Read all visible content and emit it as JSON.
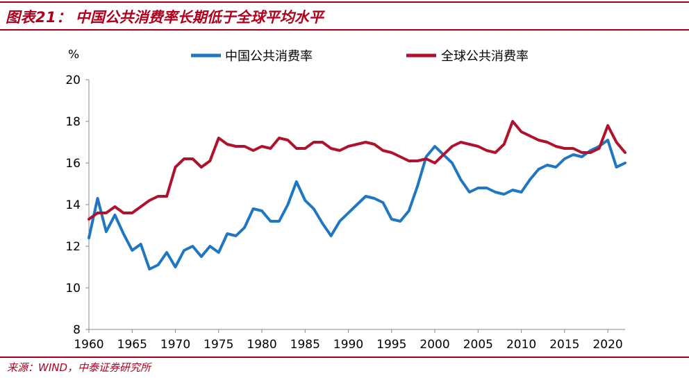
{
  "header": {
    "figure_label": "图表21：",
    "title": "中国公共消费率长期低于全球平均水平"
  },
  "footer": {
    "source": "来源：WIND，中泰证券研究所"
  },
  "chart_data": {
    "type": "line",
    "ylabel": "%",
    "ylim": [
      8,
      20
    ],
    "yticks": [
      8,
      10,
      12,
      14,
      16,
      18,
      20
    ],
    "xlim": [
      1960,
      2022
    ],
    "xticks": [
      1960,
      1965,
      1970,
      1975,
      1980,
      1985,
      1990,
      1995,
      2000,
      2005,
      2010,
      2015,
      2020
    ],
    "grid": false,
    "legend_position": "top",
    "x": [
      1960,
      1961,
      1962,
      1963,
      1964,
      1965,
      1966,
      1967,
      1968,
      1969,
      1970,
      1971,
      1972,
      1973,
      1974,
      1975,
      1976,
      1977,
      1978,
      1979,
      1980,
      1981,
      1982,
      1983,
      1984,
      1985,
      1986,
      1987,
      1988,
      1989,
      1990,
      1991,
      1992,
      1993,
      1994,
      1995,
      1996,
      1997,
      1998,
      1999,
      2000,
      2001,
      2002,
      2003,
      2004,
      2005,
      2006,
      2007,
      2008,
      2009,
      2010,
      2011,
      2012,
      2013,
      2014,
      2015,
      2016,
      2017,
      2018,
      2019,
      2020,
      2021,
      2022
    ],
    "series": [
      {
        "name": "中国公共消费率",
        "color": "#1f77c4",
        "values": [
          12.4,
          14.3,
          12.7,
          13.5,
          12.6,
          11.8,
          12.1,
          10.9,
          11.1,
          11.7,
          11.0,
          11.8,
          12.0,
          11.5,
          12.0,
          11.7,
          12.6,
          12.5,
          12.9,
          13.8,
          13.7,
          13.2,
          13.2,
          14.0,
          15.1,
          14.2,
          13.8,
          13.1,
          12.5,
          13.2,
          13.6,
          14.0,
          14.4,
          14.3,
          14.1,
          13.3,
          13.2,
          13.7,
          14.9,
          16.3,
          16.8,
          16.4,
          16.0,
          15.2,
          14.6,
          14.8,
          14.8,
          14.6,
          14.5,
          14.7,
          14.6,
          15.2,
          15.7,
          15.9,
          15.8,
          16.2,
          16.4,
          16.3,
          16.6,
          16.8,
          17.1,
          15.8,
          16.0
        ]
      },
      {
        "name": "全球公共消费率",
        "color": "#b0112d",
        "values": [
          13.3,
          13.6,
          13.6,
          13.9,
          13.6,
          13.6,
          13.9,
          14.2,
          14.4,
          14.4,
          15.8,
          16.2,
          16.2,
          15.8,
          16.1,
          17.2,
          16.9,
          16.8,
          16.8,
          16.6,
          16.8,
          16.7,
          17.2,
          17.1,
          16.7,
          16.7,
          17.0,
          17.0,
          16.7,
          16.6,
          16.8,
          16.9,
          17.0,
          16.9,
          16.6,
          16.5,
          16.3,
          16.1,
          16.1,
          16.2,
          16.0,
          16.4,
          16.8,
          17.0,
          16.9,
          16.8,
          16.6,
          16.5,
          16.9,
          18.0,
          17.5,
          17.3,
          17.1,
          17.0,
          16.8,
          16.7,
          16.7,
          16.5,
          16.5,
          16.7,
          17.8,
          17.0,
          16.5
        ]
      }
    ]
  }
}
